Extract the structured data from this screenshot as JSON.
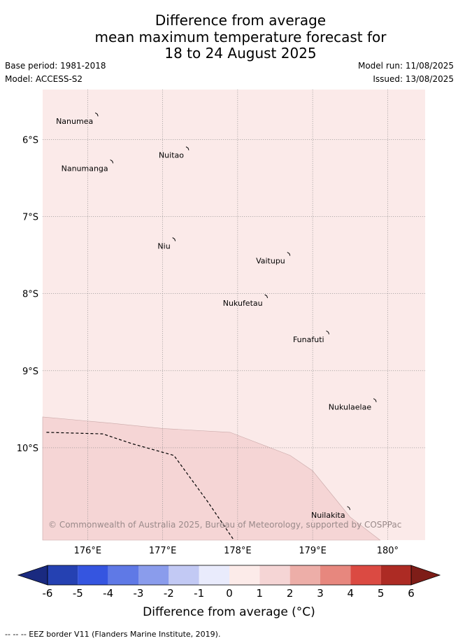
{
  "title": {
    "line1": "Difference from average",
    "line2": "mean maximum temperature forecast for",
    "line3": "18 to 24 August 2025"
  },
  "meta": {
    "base_period": "Base period: 1981-2018",
    "model": "Model: ACCESS-S2",
    "model_run": "Model run: 11/08/2025",
    "issued": "Issued: 13/08/2025"
  },
  "map": {
    "lon_range": [
      175.4,
      180.5
    ],
    "lat_range": [
      -11.2,
      -5.35
    ],
    "lon_ticks": [
      {
        "value": 176,
        "label": "176°E"
      },
      {
        "value": 177,
        "label": "177°E"
      },
      {
        "value": 178,
        "label": "178°E"
      },
      {
        "value": 179,
        "label": "179°E"
      },
      {
        "value": 180,
        "label": "180°"
      }
    ],
    "lat_ticks": [
      {
        "value": -6,
        "label": "6°S"
      },
      {
        "value": -7,
        "label": "7°S"
      },
      {
        "value": -8,
        "label": "8°S"
      },
      {
        "value": -9,
        "label": "9°S"
      },
      {
        "value": -10,
        "label": "10°S"
      }
    ],
    "background_anomaly_class": "0 to 1",
    "background_color": "#fbeae9",
    "warm_region_class": "1 to 2",
    "warm_region_color": "#f5d5d5",
    "warm_region_boundary": [
      [
        175.4,
        -9.6
      ],
      [
        176.3,
        -9.68
      ],
      [
        177.0,
        -9.75
      ],
      [
        177.9,
        -9.8
      ],
      [
        178.7,
        -10.1
      ],
      [
        179.0,
        -10.3
      ],
      [
        179.5,
        -10.9
      ],
      [
        179.9,
        -11.2
      ],
      [
        175.4,
        -11.2
      ]
    ],
    "eez_border": [
      [
        175.45,
        -9.8
      ],
      [
        176.2,
        -9.82
      ],
      [
        176.6,
        -9.95
      ],
      [
        177.15,
        -10.1
      ],
      [
        177.6,
        -10.7
      ],
      [
        177.95,
        -11.2
      ]
    ],
    "islands": [
      {
        "name": "Nanumea",
        "lon": 176.12,
        "lat": -5.67
      },
      {
        "name": "Nuitao",
        "lon": 177.33,
        "lat": -6.11
      },
      {
        "name": "Nanumanga",
        "lon": 176.32,
        "lat": -6.28
      },
      {
        "name": "Niu",
        "lon": 177.15,
        "lat": -7.29
      },
      {
        "name": "Vaitupu",
        "lon": 178.68,
        "lat": -7.48
      },
      {
        "name": "Nukufetau",
        "lon": 178.38,
        "lat": -8.03
      },
      {
        "name": "Funafuti",
        "lon": 179.2,
        "lat": -8.5
      },
      {
        "name": "Nukulaelae",
        "lon": 179.83,
        "lat": -9.38
      },
      {
        "name": "Nuilakita",
        "lon": 179.48,
        "lat": -10.78
      }
    ],
    "copyright": "© Commonwealth of Australia 2025, Bureau of Meteorology, supported by COSPPac"
  },
  "colorbar": {
    "ticks": [
      "-6",
      "-5",
      "-4",
      "-3",
      "-2",
      "-1",
      "0",
      "1",
      "2",
      "3",
      "4",
      "5",
      "6"
    ],
    "colors": [
      "#2541b2",
      "#3555e0",
      "#5f79e6",
      "#8a9cec",
      "#c2c9f4",
      "#e9ebfc",
      "#fcebe9",
      "#f5d5d5",
      "#edaea8",
      "#e7877e",
      "#db4a42",
      "#ad2b24"
    ],
    "under_color": "#1a2a80",
    "over_color": "#7e1d18",
    "title": "Difference from average (°C)"
  },
  "footnote": "-- -- -- EEZ border V11 (Flanders Marine Institute, 2019)."
}
